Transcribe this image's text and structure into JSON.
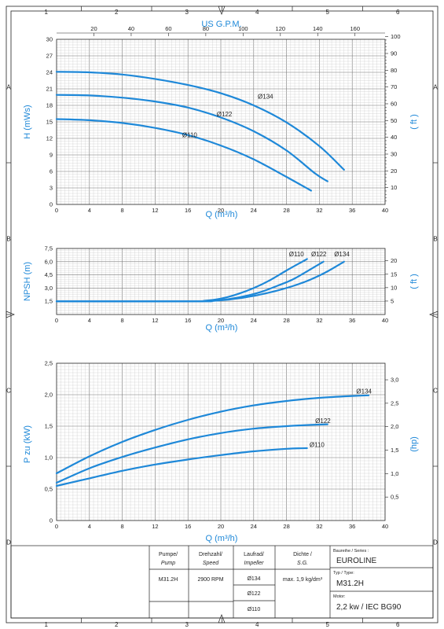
{
  "frame": {
    "columns": [
      "1",
      "2",
      "3",
      "4",
      "5",
      "6"
    ],
    "rows": [
      "A",
      "B",
      "C",
      "D"
    ]
  },
  "chart_data": [
    {
      "type": "line",
      "id": "head",
      "top_label": "US G.P.M.",
      "top_ticks": [
        20,
        40,
        60,
        80,
        100,
        120,
        140,
        160
      ],
      "xlabel": "Q (m³/h)",
      "ylabel": "H (mWs)",
      "ylabel_right": "( ft )",
      "xlim": [
        0,
        40
      ],
      "ylim": [
        0,
        30
      ],
      "xticks": [
        0,
        4,
        8,
        12,
        16,
        20,
        24,
        28,
        32,
        36,
        40
      ],
      "yticks": [
        3,
        6,
        9,
        12,
        15,
        18,
        21,
        24,
        27,
        30
      ],
      "yticks_right": [
        10,
        20,
        30,
        40,
        50,
        60,
        70,
        80,
        90,
        100
      ],
      "series": [
        {
          "name": "Ø134",
          "label_at": [
            24.5,
            19.2
          ],
          "x": [
            0,
            4,
            8,
            12,
            16,
            20,
            24,
            28,
            32,
            35
          ],
          "y": [
            24.1,
            24.0,
            23.6,
            22.8,
            21.7,
            20.2,
            18.0,
            14.9,
            10.6,
            6.3
          ]
        },
        {
          "name": "Ø122",
          "label_at": [
            19.5,
            16.0
          ],
          "x": [
            0,
            4,
            8,
            12,
            16,
            20,
            24,
            28,
            31.5,
            33
          ],
          "y": [
            19.9,
            19.8,
            19.4,
            18.7,
            17.6,
            15.8,
            13.3,
            9.8,
            5.6,
            4.2
          ]
        },
        {
          "name": "Ø110",
          "label_at": [
            15.3,
            12.2
          ],
          "x": [
            0,
            4,
            8,
            12,
            16,
            20,
            24,
            28,
            31
          ],
          "y": [
            15.5,
            15.3,
            14.8,
            13.9,
            12.6,
            10.7,
            8.2,
            5.0,
            2.5
          ]
        }
      ]
    },
    {
      "type": "line",
      "id": "npsh",
      "xlabel": "Q (m³/h)",
      "ylabel": "NPSH (m)",
      "ylabel_right": "( ft )",
      "xlim": [
        0,
        40
      ],
      "ylim": [
        0,
        7.5
      ],
      "xticks": [
        0,
        4,
        8,
        12,
        16,
        20,
        24,
        28,
        32,
        36,
        40
      ],
      "yticks": [
        "1,5",
        "3,0",
        "4,5",
        "6,0",
        "7,5"
      ],
      "yticks_right": [
        5,
        10,
        15,
        20
      ],
      "series": [
        {
          "name": "Ø110",
          "label_at": [
            28.3,
            6.6
          ],
          "x": [
            0,
            16,
            18,
            20,
            22,
            24,
            26,
            28,
            30.5
          ],
          "y": [
            1.5,
            1.5,
            1.55,
            1.8,
            2.3,
            3.0,
            3.9,
            5.0,
            6.3
          ]
        },
        {
          "name": "Ø122",
          "label_at": [
            31.0,
            6.6
          ],
          "x": [
            0,
            17,
            19,
            21,
            23,
            25,
            27,
            29,
            32.5
          ],
          "y": [
            1.5,
            1.5,
            1.55,
            1.75,
            2.1,
            2.6,
            3.3,
            4.1,
            6.0
          ]
        },
        {
          "name": "Ø134",
          "label_at": [
            33.8,
            6.6
          ],
          "x": [
            0,
            17,
            19,
            21,
            23,
            25,
            27,
            29,
            31,
            33,
            35
          ],
          "y": [
            1.5,
            1.5,
            1.55,
            1.7,
            1.95,
            2.3,
            2.75,
            3.3,
            4.0,
            4.9,
            6.0
          ]
        }
      ]
    },
    {
      "type": "line",
      "id": "power",
      "xlabel": "Q (m³/h)",
      "ylabel": "P zu (kW)",
      "ylabel_right": "(hp)",
      "xlim": [
        0,
        40
      ],
      "ylim": [
        0,
        2.5
      ],
      "xticks": [
        0,
        4,
        8,
        12,
        16,
        20,
        24,
        28,
        32,
        36,
        40
      ],
      "yticks": [
        "0,5",
        "1,0",
        "1,5",
        "2,0",
        "2,5"
      ],
      "yticks_right": [
        "0,5",
        "1,0",
        "1,5",
        "2,0",
        "2,5",
        "3,0"
      ],
      "series": [
        {
          "name": "Ø134",
          "label_at": [
            36.5,
            2.02
          ],
          "x": [
            0,
            4,
            8,
            12,
            16,
            20,
            24,
            28,
            32,
            36,
            38
          ],
          "y": [
            0.75,
            1.02,
            1.25,
            1.44,
            1.6,
            1.73,
            1.83,
            1.9,
            1.95,
            1.98,
            1.99
          ]
        },
        {
          "name": "Ø122",
          "label_at": [
            31.5,
            1.55
          ],
          "x": [
            0,
            4,
            8,
            12,
            16,
            20,
            24,
            28,
            31,
            33
          ],
          "y": [
            0.6,
            0.83,
            1.01,
            1.16,
            1.29,
            1.39,
            1.46,
            1.5,
            1.52,
            1.53
          ]
        },
        {
          "name": "Ø110",
          "label_at": [
            30.8,
            1.17
          ],
          "x": [
            0,
            4,
            8,
            12,
            16,
            20,
            24,
            28,
            30.5
          ],
          "y": [
            0.55,
            0.67,
            0.79,
            0.89,
            0.97,
            1.04,
            1.1,
            1.14,
            1.15
          ]
        }
      ]
    }
  ],
  "titleblock": {
    "pump_label": "Pumpe/",
    "pump_label_en": "Pump",
    "speed_label": "Drehzahl/",
    "speed_label_en": "Speed",
    "impeller_label": "Laufrad/",
    "impeller_label_en": "Impeller",
    "sg_label": "Dichte /",
    "sg_label_en": "S.G.",
    "pump": "M31.2H",
    "speed": "2900 RPM",
    "impellers": [
      "Ø134",
      "Ø122",
      "Ø110"
    ],
    "sg": "max. 1,9 kg/dm³",
    "series_label": "Baureihe / Series :",
    "series": "EUROLINE",
    "type_label": "Typ / Type:",
    "type": "M31.2H",
    "motor_label": "Motor:",
    "motor": "2,2 kw / IEC BG90"
  }
}
